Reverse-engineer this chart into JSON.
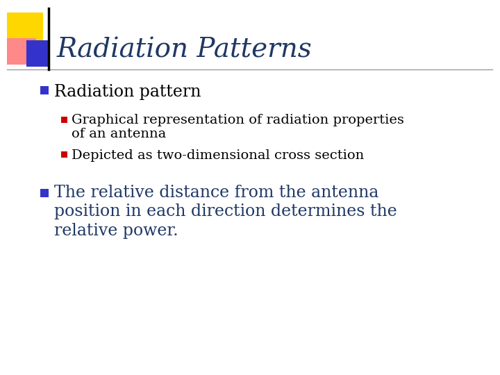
{
  "bg_color": "#ffffff",
  "title": "Radiation Patterns",
  "title_color": "#1F3864",
  "title_fontsize": 28,
  "title_font": "serif",
  "bullet1_text": "Radiation pattern",
  "bullet1_color": "#000000",
  "bullet1_fontsize": 17,
  "sub_bullet1_line1": "Graphical representation of radiation properties",
  "sub_bullet1_line2": "of an antenna",
  "sub_bullet2_text": "Depicted as two-dimensional cross section",
  "sub_bullet_fontsize": 14,
  "sub_bullet_color": "#000000",
  "bullet2_line1": "The relative distance from the antenna",
  "bullet2_line2": "position in each direction determines the",
  "bullet2_line3": "relative power.",
  "bullet2_fontsize": 17,
  "bullet2_color": "#1F3864",
  "blue_bullet_color": "#3333cc",
  "red_bullet_color": "#cc0000",
  "deco_yellow": "#FFD700",
  "deco_red": "#FF8888",
  "deco_blue": "#3333cc",
  "line_color": "#000000",
  "separator_color": "#999999"
}
